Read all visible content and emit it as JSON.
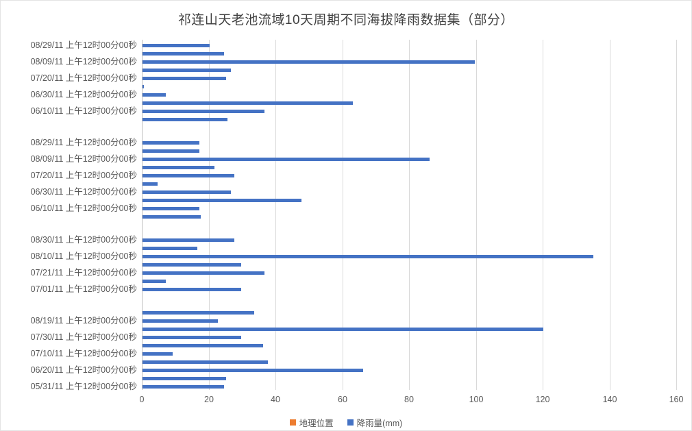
{
  "chart_data": {
    "type": "bar",
    "orientation": "horizontal",
    "title": "祁连山天老池流域10天周期不同海拔降雨数据集（部分）",
    "xlabel": "",
    "ylabel": "",
    "xlim": [
      0,
      160
    ],
    "x_ticks": [
      0,
      20,
      40,
      60,
      80,
      100,
      120,
      140,
      160
    ],
    "grid": true,
    "legend_position": "bottom",
    "series": [
      {
        "name": "地理位置",
        "color": "#ED7D31"
      },
      {
        "name": "降雨量(mm)",
        "color": "#4472C4"
      }
    ],
    "groups": [
      {
        "rows": [
          {
            "label": "08/29/11 上午12时00分00秒",
            "value": 20
          },
          {
            "label": "",
            "value": 24.5
          },
          {
            "label": "08/09/11 上午12时00分00秒",
            "value": 99.5
          },
          {
            "label": "",
            "value": 26.5
          },
          {
            "label": "07/20/11 上午12时00分00秒",
            "value": 25
          },
          {
            "label": "",
            "value": 0.4
          },
          {
            "label": "06/30/11 上午12时00分00秒",
            "value": 7
          },
          {
            "label": "",
            "value": 63
          },
          {
            "label": "06/10/11 上午12时00分00秒",
            "value": 36.5
          },
          {
            "label": "",
            "value": 25.5
          }
        ]
      },
      {
        "rows": [
          {
            "label": "08/29/11 上午12时00分00秒",
            "value": 17
          },
          {
            "label": "",
            "value": 17
          },
          {
            "label": "08/09/11 上午12时00分00秒",
            "value": 86
          },
          {
            "label": "",
            "value": 21.5
          },
          {
            "label": "07/20/11 上午12时00分00秒",
            "value": 27.5
          },
          {
            "label": "",
            "value": 4.5
          },
          {
            "label": "06/30/11 上午12时00分00秒",
            "value": 26.5
          },
          {
            "label": "",
            "value": 47.5
          },
          {
            "label": "06/10/11 上午12时00分00秒",
            "value": 17
          },
          {
            "label": "",
            "value": 17.5
          }
        ]
      },
      {
        "rows": [
          {
            "label": "08/30/11 上午12时00分00秒",
            "value": 27.5
          },
          {
            "label": "",
            "value": 16.5
          },
          {
            "label": "08/10/11 上午12时00分00秒",
            "value": 135
          },
          {
            "label": "",
            "value": 29.5
          },
          {
            "label": "07/21/11 上午12时00分00秒",
            "value": 36.5
          },
          {
            "label": "",
            "value": 7
          },
          {
            "label": "07/01/11 上午12时00分00秒",
            "value": 29.5
          }
        ]
      },
      {
        "rows": [
          {
            "label": "",
            "value": 33.5
          },
          {
            "label": "08/19/11 上午12时00分00秒",
            "value": 22.5
          },
          {
            "label": "",
            "value": 120
          },
          {
            "label": "07/30/11 上午12时00分00秒",
            "value": 29.5
          },
          {
            "label": "",
            "value": 36
          },
          {
            "label": "07/10/11 上午12时00分00秒",
            "value": 9
          },
          {
            "label": "",
            "value": 37.5
          },
          {
            "label": "06/20/11 上午12时00分00秒",
            "value": 66
          },
          {
            "label": "",
            "value": 25
          },
          {
            "label": "05/31/11 上午12时00分00秒",
            "value": 24.5
          }
        ]
      }
    ],
    "colors": {
      "bar": "#4472C4",
      "legend_orange": "#ED7D31",
      "gridline": "#D9D9D9",
      "axis_line": "#BFBFBF",
      "text": "#595959",
      "title": "#404040"
    }
  }
}
